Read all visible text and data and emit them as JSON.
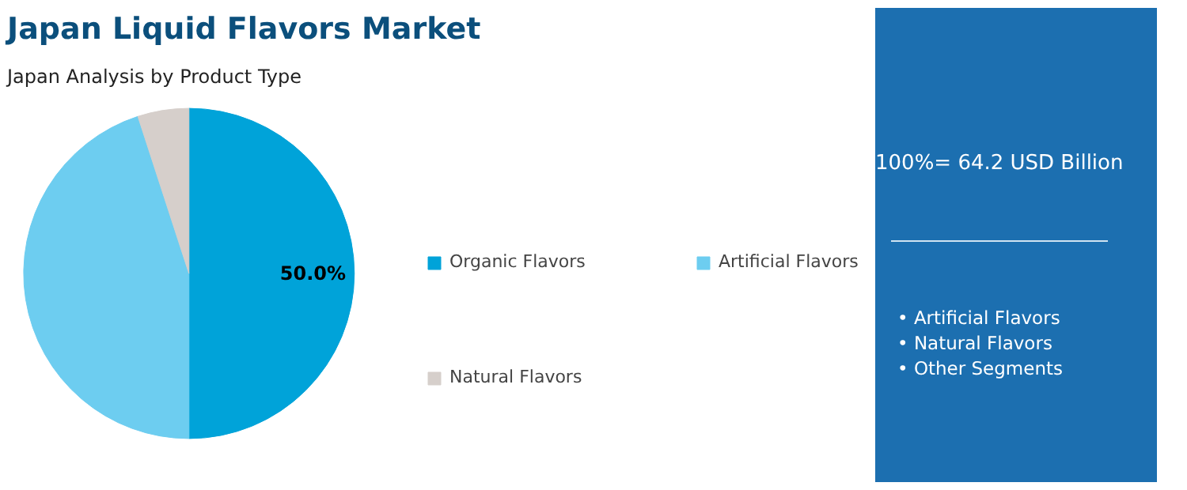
{
  "chart_data": {
    "type": "pie",
    "title": "Japan Liquid Flavors Market",
    "subtitle": "Japan Analysis by Product Type",
    "categories": [
      "Organic Flavors",
      "Artificial Flavors",
      "Natural Flavors"
    ],
    "values": [
      50,
      45,
      5
    ],
    "colors": [
      "#00a3d9",
      "#6dcdf0",
      "#d6cfcb"
    ],
    "value_labels": [
      "50.0%",
      null,
      null
    ],
    "legend": "right",
    "annotations": [
      "100%= 64.2 USD Billion",
      "• Artificial Flavors",
      "• Natural Flavors",
      "• Other Segments"
    ]
  }
}
